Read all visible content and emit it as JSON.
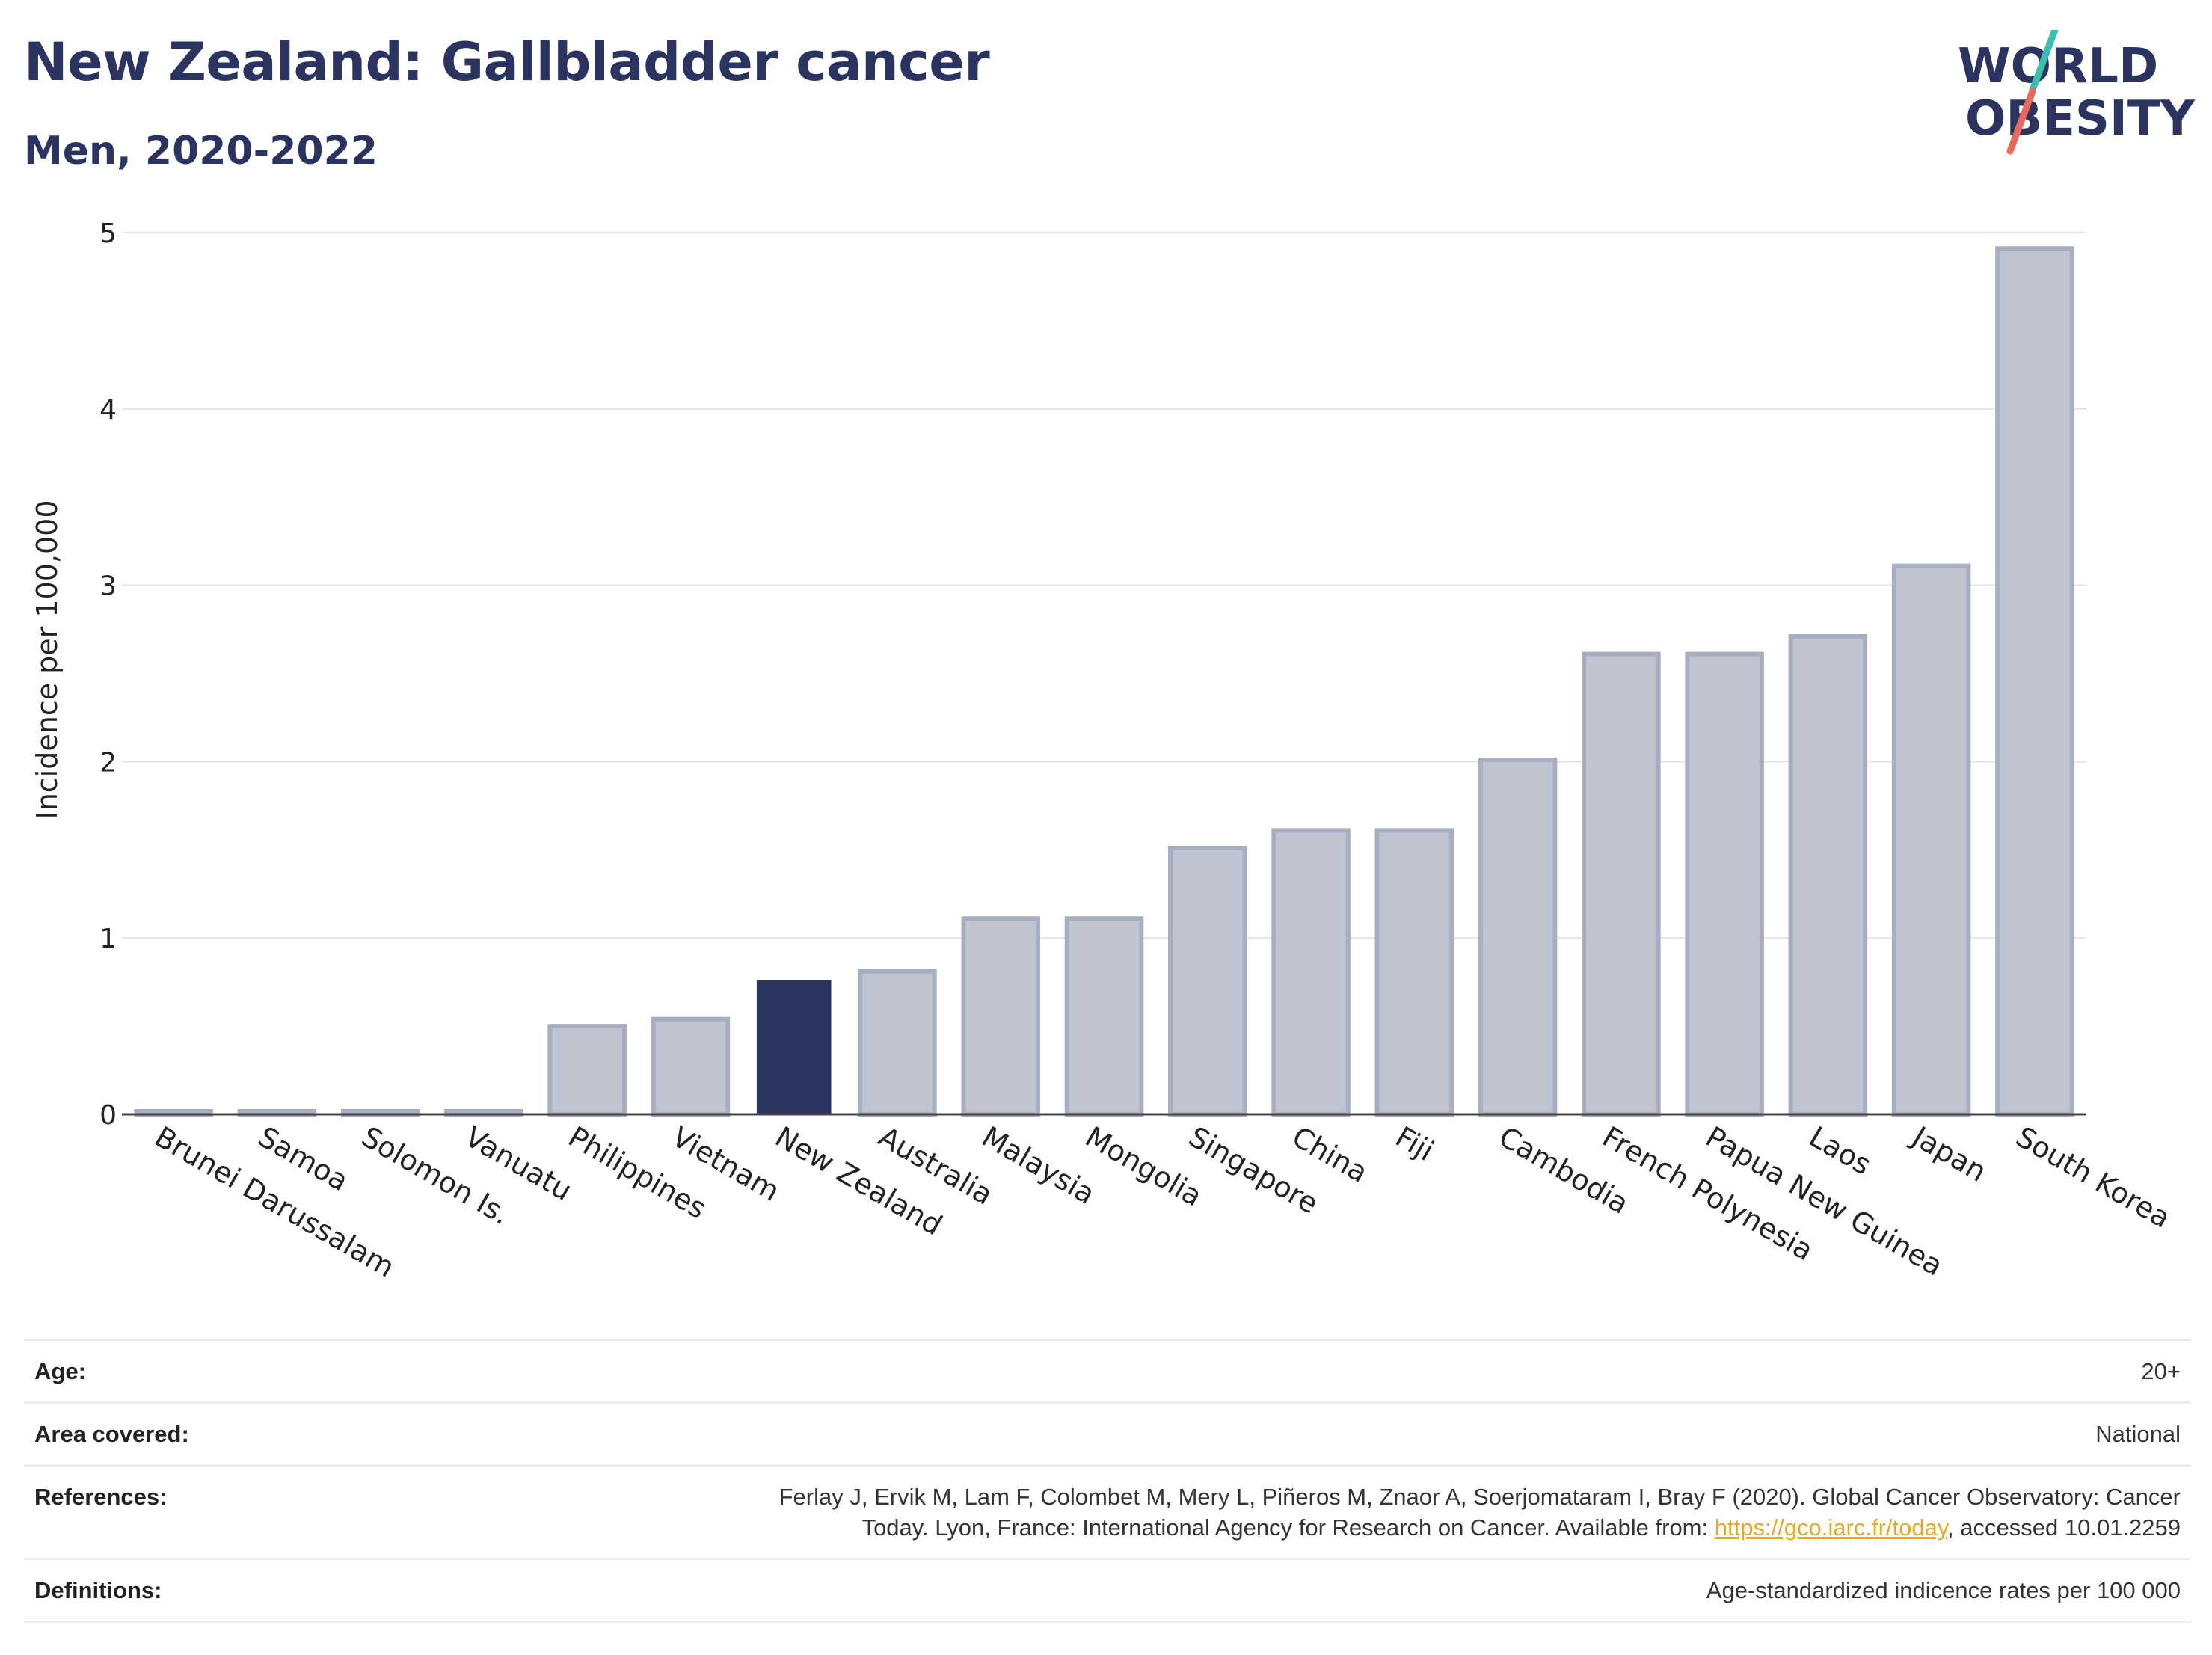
{
  "header": {
    "title": "New Zealand: Gallbladder cancer",
    "subtitle": "Men, 2020-2022"
  },
  "logo": {
    "line1": "WORLD",
    "line2": "OBESITY",
    "colors": {
      "text": "#2b3460",
      "slash_red": "#e8685a",
      "slash_teal": "#3bbfb0"
    }
  },
  "chart_data": {
    "type": "bar",
    "ylabel": "Incidence per 100,000",
    "xlabel": "",
    "ylim": [
      0,
      5
    ],
    "yticks": [
      0,
      1,
      2,
      3,
      4,
      5
    ],
    "grid": true,
    "highlight": "New Zealand",
    "colors": {
      "bar": "#c0c4d1",
      "bar_stroke": "#a8aec2",
      "highlight": "#2b3460",
      "grid": "#e6e6ee",
      "axis": "#444444"
    },
    "categories": [
      "Brunei Darussalam",
      "Samoa",
      "Solomon Is.",
      "Vanuatu",
      "Philippines",
      "Vietnam",
      "New Zealand",
      "Australia",
      "Malaysia",
      "Mongolia",
      "Singapore",
      "China",
      "Fiji",
      "Cambodia",
      "French Polynesia",
      "Papua New Guinea",
      "Laos",
      "Japan",
      "South Korea"
    ],
    "values": [
      0,
      0,
      0,
      0,
      0.5,
      0.54,
      0.76,
      0.81,
      1.11,
      1.11,
      1.51,
      1.61,
      1.61,
      2.01,
      2.61,
      2.61,
      2.71,
      3.11,
      4.91
    ]
  },
  "info": {
    "age_label": "Age:",
    "age_value": "20+",
    "area_label": "Area covered:",
    "area_value": "National",
    "references_label": "References:",
    "references_line1": "Ferlay J, Ervik M, Lam F, Colombet M, Mery L, Piñeros M, Znaor A, Soerjomataram I, Bray F (2020). Global Cancer Observatory: Cancer",
    "references_line2_pre": "Today. Lyon, France: International Agency for Research on Cancer. Available from: ",
    "references_link": "https://gco.iarc.fr/today",
    "references_line2_post": ", accessed 10.01.2259",
    "definitions_label": "Definitions:",
    "definitions_value": "Age-standardized indicence rates per 100 000"
  }
}
